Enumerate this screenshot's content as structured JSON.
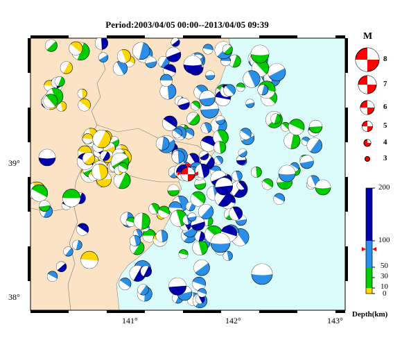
{
  "title": "Period:2003/04/05 00:00--2013/04/05 09:39",
  "axes": {
    "lon_labels": [
      "141°",
      "142°",
      "143°"
    ],
    "lat_labels": [
      "39°",
      "38°"
    ]
  },
  "magnitude_legend": {
    "heading": "M",
    "values": [
      "8",
      "7",
      "6",
      "5",
      "4",
      "3"
    ],
    "color": "#ff0000"
  },
  "depth_scale": {
    "labels": [
      "200",
      "100",
      "50",
      "30",
      "10",
      "0"
    ],
    "unit": "Depth(km)",
    "colors": {
      "shallow": "#ffd700",
      "mid": "#00cc00",
      "intermediate": "#2b8fe8",
      "deep": "#0000aa"
    }
  },
  "colors": {
    "land": "#fbe3c6",
    "sea": "#dcfcfc",
    "mainshock": "#ff0000"
  }
}
